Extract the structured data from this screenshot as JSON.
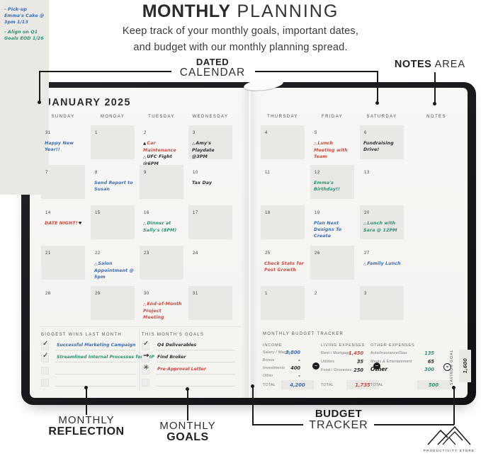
{
  "colors": {
    "blue": "#3b6cb4",
    "red": "#cb4a41",
    "green": "#2f9076",
    "black": "#2e2e2e",
    "ink": "#222222"
  },
  "header": {
    "title_bold": "MONTHLY",
    "title_light": " PLANNING",
    "subtitle_line1": "Keep track of your monthly goals, important dates,",
    "subtitle_line2": "and budget with our monthly planning spread."
  },
  "callouts": {
    "dated": {
      "bold": "DATED",
      "light": "CALENDAR"
    },
    "notes": {
      "bold": "NOTES",
      "light": " AREA"
    },
    "reflection": {
      "light": "MONTHLY",
      "bold": "REFLECTION"
    },
    "goals": {
      "light": "MONTHLY",
      "bold": "GOALS"
    },
    "budget": {
      "bold": "BUDGET",
      "light": "TRACKER"
    }
  },
  "planner": {
    "month_title": "JANUARY 2025",
    "left_day_headers": [
      "SUNDAY",
      "MONDAY",
      "TUESDAY",
      "WEDNESDAY"
    ],
    "right_day_headers": [
      "THURSDAY",
      "FRIDAY",
      "SATURDAY"
    ],
    "notes_header": "NOTES",
    "left_rows": [
      [
        {
          "day": "31",
          "gray": false,
          "entries": [
            {
              "text": "Happy New Year!!",
              "color": "blue"
            }
          ]
        },
        {
          "day": "1",
          "gray": true,
          "entries": []
        },
        {
          "day": "2",
          "gray": false,
          "entries": [
            {
              "icon": "triangle-filled",
              "text": "Car Maintenance",
              "color": "red"
            },
            {
              "icon": "triangle-outline",
              "text": "UFC Fight @6PM",
              "color": "black"
            }
          ]
        },
        {
          "day": "3",
          "gray": true,
          "entries": [
            {
              "icon": "triangle-outline",
              "text": "Amy's Playdate @3PM",
              "color": "black"
            }
          ]
        }
      ],
      [
        {
          "day": "7",
          "gray": true,
          "entries": []
        },
        {
          "day": "8",
          "gray": false,
          "entries": [
            {
              "text": "Send Report to Susan",
              "color": "blue"
            }
          ]
        },
        {
          "day": "9",
          "gray": true,
          "entries": []
        },
        {
          "day": "10",
          "gray": false,
          "entries": [
            {
              "text": "Tax Day",
              "color": "black"
            }
          ]
        }
      ],
      [
        {
          "day": "14",
          "gray": false,
          "entries": [
            {
              "text": "DATE NIGHT!",
              "suffix_icon": "heart",
              "color": "red"
            }
          ]
        },
        {
          "day": "15",
          "gray": true,
          "entries": []
        },
        {
          "day": "16",
          "gray": false,
          "entries": [
            {
              "icon": "triangle-outline",
              "text": "Dinner at Sally's (8PM)",
              "color": "green"
            }
          ]
        },
        {
          "day": "17",
          "gray": true,
          "entries": []
        }
      ],
      [
        {
          "day": "21",
          "gray": true,
          "entries": []
        },
        {
          "day": "22",
          "gray": false,
          "entries": [
            {
              "icon": "triangle-outline",
              "text": "Salon Appointment @ 5pm",
              "color": "blue"
            }
          ]
        },
        {
          "day": "23",
          "gray": true,
          "entries": []
        },
        {
          "day": "24",
          "gray": false,
          "entries": []
        }
      ],
      [
        {
          "day": "28",
          "gray": false,
          "entries": []
        },
        {
          "day": "29",
          "gray": true,
          "entries": []
        },
        {
          "day": "30",
          "gray": false,
          "entries": [
            {
              "icon": "triangle-outline",
              "text": "End-of-Month Project Meeting",
              "color": "red"
            }
          ]
        },
        {
          "day": "31",
          "gray": true,
          "entries": []
        }
      ]
    ],
    "right_rows": [
      [
        {
          "day": "4",
          "gray": true,
          "entries": []
        },
        {
          "day": "5",
          "gray": false,
          "entries": [
            {
              "icon": "triangle-outline",
              "text": "Lunch Meeting with Team",
              "color": "red"
            }
          ]
        },
        {
          "day": "6",
          "gray": true,
          "entries": [
            {
              "text": "Fundraising Drive!",
              "color": "black"
            }
          ]
        }
      ],
      [
        {
          "day": "11",
          "gray": false,
          "entries": []
        },
        {
          "day": "12",
          "gray": true,
          "entries": [
            {
              "text": "Emma's Birthday!!",
              "color": "green"
            }
          ]
        },
        {
          "day": "13",
          "gray": false,
          "entries": []
        }
      ],
      [
        {
          "day": "18",
          "gray": true,
          "entries": []
        },
        {
          "day": "19",
          "gray": false,
          "entries": [
            {
              "text": "Plan Next Designs To Create",
              "color": "blue"
            }
          ]
        },
        {
          "day": "20",
          "gray": true,
          "entries": [
            {
              "icon": "triangle-outline",
              "text": "Lunch with Sara @ 12PM",
              "color": "green"
            }
          ]
        }
      ],
      [
        {
          "day": "25",
          "gray": false,
          "entries": [
            {
              "text": "Check Stats for Post Growth",
              "color": "red"
            }
          ]
        },
        {
          "day": "26",
          "gray": true,
          "entries": []
        },
        {
          "day": "27",
          "gray": false,
          "entries": [
            {
              "icon": "triangle-outline",
              "text": "Family Lunch",
              "color": "blue"
            }
          ]
        }
      ],
      [
        {
          "day": "1",
          "gray": true,
          "entries": []
        },
        {
          "day": "2",
          "gray": false,
          "entries": []
        },
        {
          "day": "3",
          "gray": true,
          "entries": []
        }
      ]
    ],
    "notes_entries": [
      {
        "text": "- Pick-up Emma's Cake @ 3pm 1/13",
        "color": "blue"
      },
      {
        "text": "- Align on Q1 Goals EOD 1/26",
        "color": "green"
      }
    ]
  },
  "sections": {
    "wins": {
      "header": "BIGGEST WINS LAST MONTH",
      "rows": [
        {
          "mark": "check",
          "text": "Successful Marketing Campaign",
          "color": "blue"
        },
        {
          "mark": "check",
          "text": "Streamlined Internal Processes for GBP",
          "color": "green"
        },
        {
          "mark": "",
          "text": "",
          "color": "black"
        },
        {
          "mark": "",
          "text": "",
          "color": "black"
        }
      ]
    },
    "goals": {
      "header": "THIS MONTH'S GOALS",
      "rows": [
        {
          "mark": "check",
          "text": "Q4 Deliverables",
          "color": "black"
        },
        {
          "mark": "arrow",
          "text": "Find Broker",
          "color": "black"
        },
        {
          "mark": "star",
          "text": "Pre-Approval Letter",
          "color": "red"
        },
        {
          "mark": "",
          "text": "",
          "color": "black"
        }
      ]
    }
  },
  "budget": {
    "header": "MONTHLY BUDGET TRACKER",
    "total_label": "TOTAL",
    "columns": [
      {
        "header": "INCOME",
        "rows": [
          {
            "label": "Salary / Wages",
            "value": "3,800",
            "color": "blue"
          },
          {
            "label": "Bonus",
            "value": "-",
            "color": "black"
          },
          {
            "label": "Investments",
            "value": "400",
            "color": "black"
          },
          {
            "label": "Other",
            "value": "-",
            "color": "black"
          }
        ],
        "total": "4,200",
        "total_color": "blue"
      },
      {
        "header": "LIVING EXPENSES",
        "rows": [
          {
            "label": "Rent / Mortgage",
            "value": "1,450",
            "color": "red"
          },
          {
            "label": "Utilities",
            "value": "35",
            "color": "black"
          },
          {
            "label": "Food / Groceries",
            "value": "250",
            "color": "black"
          }
        ],
        "total": "1,735",
        "total_color": "red"
      },
      {
        "header": "OTHER EXPENSES",
        "rows": [
          {
            "label": "Auto/Insurance/Gas",
            "value": "135",
            "color": "green"
          },
          {
            "label": "Meals & Entertainment",
            "value": "65",
            "color": "black"
          },
          {
            "label": "Other",
            "value": "300",
            "color": "green",
            "handwritten_label": true
          }
        ],
        "total": "500",
        "total_color": "green"
      }
    ],
    "savings": {
      "label": "SAVINGS GOAL",
      "value": "1,600"
    }
  },
  "logo": {
    "text": "PRODUCTIVITY STORE"
  }
}
